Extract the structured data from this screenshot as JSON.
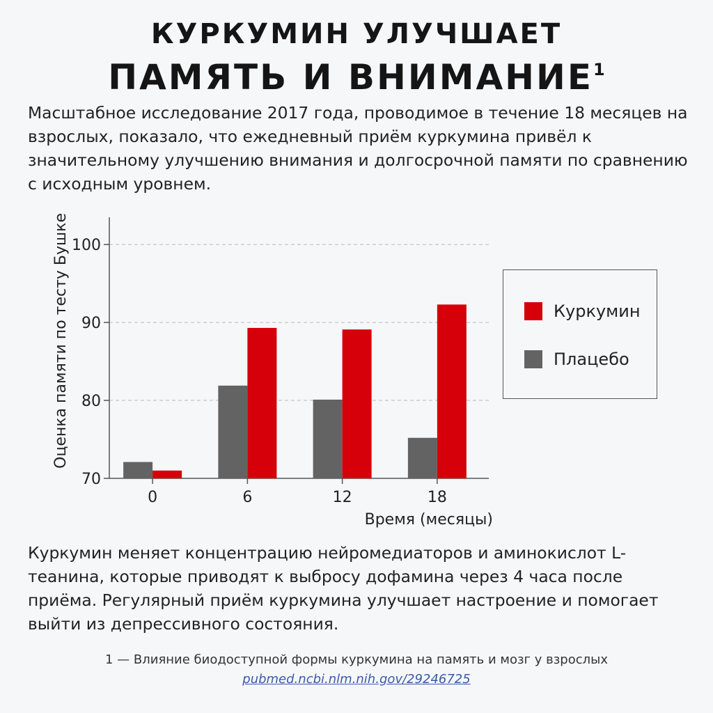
{
  "header": {
    "title_line1": "КУРКУМИН УЛУЧШАЕТ",
    "title_line2": "ПАМЯТЬ И ВНИМАНИЕ",
    "title_sup": "1"
  },
  "intro_text": "Масштабное исследование 2017 года, проводимое в течение 18 месяцев на взрослых, показало, что ежедневный приём куркумина привёл к значительному улучшению внимания и долгосрочной памяти по сравнению с исходным уровнем.",
  "outro_text": "Куркумин меняет концентрацию нейромедиаторов и аминокислот L-теанина, которые приводят к выбросу дофамина через 4 часа после приёма. Регулярный приём куркумина улучшает настроение и помогает выйти из депрессивного состояния.",
  "footnote": {
    "text": "1 — Влияние биодоступной формы куркумина на память и мозг у взрослых",
    "link": "pubmed.ncbi.nlm.nih.gov/29246725"
  },
  "colors": {
    "curcumin": "#d6000b",
    "placebo": "#636363",
    "grid": "#b9b9b9",
    "axis": "#555555"
  },
  "chart_data": {
    "type": "bar",
    "xlabel": "Время (месяцы)",
    "ylabel": "Оценка памяти по тесту Бушке",
    "categories": [
      "0",
      "6",
      "12",
      "18"
    ],
    "ylim": [
      70,
      103.5
    ],
    "yticks": [
      70,
      80,
      90,
      100
    ],
    "grid": true,
    "legend_position": "right",
    "series": [
      {
        "name": "Плацебо",
        "values": [
          72.1,
          81.9,
          80.1,
          75.2
        ]
      },
      {
        "name": "Куркумин",
        "values": [
          71.0,
          89.3,
          89.1,
          92.3
        ]
      }
    ]
  }
}
